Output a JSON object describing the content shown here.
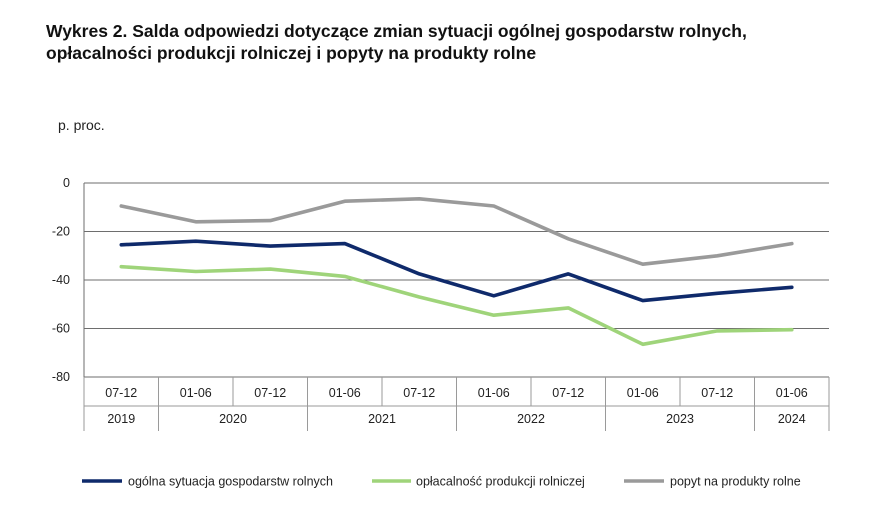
{
  "title": {
    "line1": "Wykres 2. Salda odpowiedzi dotyczące zmian sytuacji ogólnej gospodarstw rolnych,",
    "line2": "opłacalności produkcji rolniczej i popyty na produkty rolne"
  },
  "chart_data": {
    "type": "line",
    "ylabel": "p. proc.",
    "ylim": [
      -80,
      0
    ],
    "yticks": [
      0,
      -20,
      -40,
      -60,
      -80
    ],
    "categories": [
      "07-12",
      "01-06",
      "07-12",
      "01-06",
      "07-12",
      "01-06",
      "07-12",
      "01-06",
      "07-12",
      "01-06"
    ],
    "years": [
      {
        "label": "2019",
        "start": 0,
        "end": 0
      },
      {
        "label": "2020",
        "start": 1,
        "end": 2
      },
      {
        "label": "2021",
        "start": 3,
        "end": 4
      },
      {
        "label": "2022",
        "start": 5,
        "end": 6
      },
      {
        "label": "2023",
        "start": 7,
        "end": 8
      },
      {
        "label": "2024",
        "start": 9,
        "end": 9
      }
    ],
    "grid": true,
    "legend_position": "bottom",
    "series": [
      {
        "name": "ogólna sytuacja gospodarstw rolnych",
        "color": "#0f2a6b",
        "values": [
          -25.5,
          -24,
          -26,
          -25,
          -37.5,
          -46.5,
          -37.5,
          -48.5,
          -45.5,
          -43
        ]
      },
      {
        "name": "opłacalność produkcji rolniczej",
        "color": "#9fd47a",
        "values": [
          -34.5,
          -36.5,
          -35.5,
          -38.5,
          -47,
          -54.5,
          -51.5,
          -66.5,
          -61,
          -60.5
        ]
      },
      {
        "name": "popyt na produkty rolne",
        "color": "#9a9a9a",
        "values": [
          -9.5,
          -16,
          -15.5,
          -7.5,
          -6.5,
          -9.5,
          -23,
          -33.5,
          -30,
          -25
        ]
      }
    ]
  }
}
